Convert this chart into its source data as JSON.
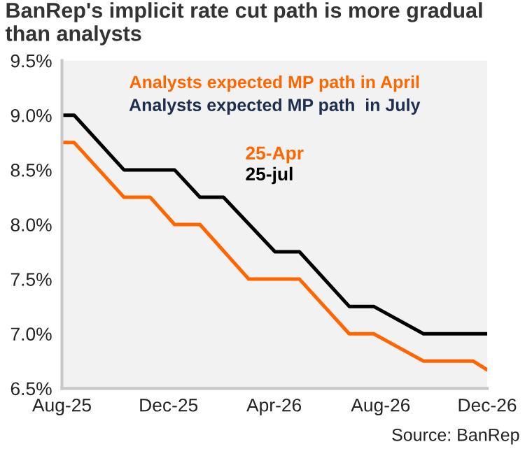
{
  "chart_data": {
    "type": "line",
    "title": "BanRep's implicit rate cut path is more gradual than analysts",
    "series": [
      {
        "name": "25-Apr",
        "color": "#ff6600",
        "x": [
          "2025-08-01",
          "2025-08-15",
          "2025-10-11",
          "2025-11-10",
          "2025-12-08",
          "2026-01-06",
          "2026-03-03",
          "2026-04-30",
          "2026-06-26",
          "2026-07-24",
          "2026-09-19",
          "2026-11-15",
          "2026-12-01"
        ],
        "values": [
          8.75,
          8.75,
          8.25,
          8.25,
          8.0,
          8.0,
          7.5,
          7.5,
          7.0,
          7.0,
          6.75,
          6.75,
          6.67
        ]
      },
      {
        "name": "25-jul",
        "color": "#000000",
        "x": [
          "2025-08-01",
          "2025-08-15",
          "2025-10-11",
          "2025-12-08",
          "2026-01-06",
          "2026-02-02",
          "2026-04-02",
          "2026-04-30",
          "2026-06-26",
          "2026-07-24",
          "2026-09-19",
          "2026-12-01"
        ],
        "values": [
          9.0,
          9.0,
          8.5,
          8.5,
          8.25,
          8.25,
          7.75,
          7.75,
          7.25,
          7.25,
          7.0,
          7.0
        ]
      }
    ],
    "annotations": [
      "Analysts expected MP path in April",
      "Analysts expected MP path  in July",
      "Source: BanRep"
    ],
    "xlim": [
      "2025-08-01",
      "2026-12-01"
    ],
    "xticks": [
      {
        "value": "2025-08-01",
        "label": "Aug-25"
      },
      {
        "value": "2025-12-01",
        "label": "Dec-25"
      },
      {
        "value": "2026-04-01",
        "label": "Apr-26"
      },
      {
        "value": "2026-08-01",
        "label": "Aug-26"
      },
      {
        "value": "2026-12-01",
        "label": "Dec-26"
      }
    ],
    "ylim": [
      6.5,
      9.5
    ],
    "yticks": [
      {
        "value": 6.5,
        "label": "6.5%"
      },
      {
        "value": 7.0,
        "label": "7.0%"
      },
      {
        "value": 7.5,
        "label": "7.5%"
      },
      {
        "value": 8.0,
        "label": "8.0%"
      },
      {
        "value": 8.5,
        "label": "8.5%"
      },
      {
        "value": 9.0,
        "label": "9.0%"
      },
      {
        "value": 9.5,
        "label": "9.5%"
      }
    ],
    "legend": "top",
    "grid": false
  }
}
